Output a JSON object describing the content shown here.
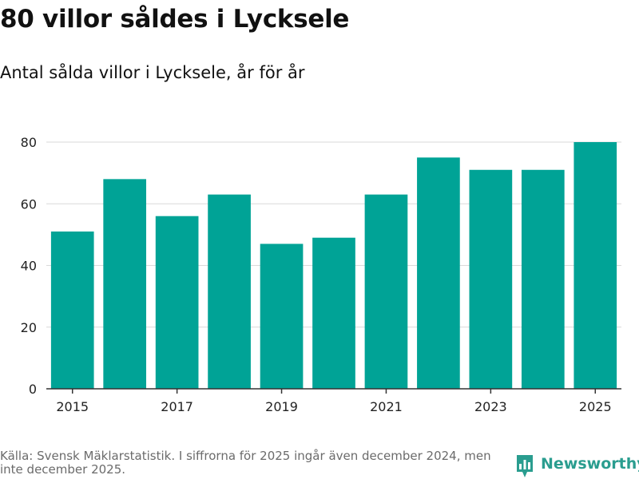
{
  "header": {
    "title": "80 villor såldes i Lycksele",
    "subtitle": "Antal sålda villor i Lycksele, år för år"
  },
  "footer": {
    "source": "Källa: Svensk Mäklarstatistik. I siffrorna för 2025 ingår även december 2024, men inte december 2025."
  },
  "brand": {
    "name": "Newsworthy",
    "icon": "newsworthy-logo-icon"
  },
  "colors": {
    "bar": "#00a396",
    "grid": "#d9d9d9",
    "axis": "#333333",
    "brand": "#2a9d8f"
  },
  "chart_data": {
    "type": "bar",
    "title": "Antal sålda villor i Lycksele, år för år",
    "xlabel": "",
    "ylabel": "",
    "categories": [
      "2015",
      "2016",
      "2017",
      "2018",
      "2019",
      "2020",
      "2021",
      "2022",
      "2023",
      "2024",
      "2025"
    ],
    "values": [
      51,
      68,
      56,
      63,
      47,
      49,
      63,
      75,
      71,
      71,
      80
    ],
    "ylim": [
      0,
      80
    ],
    "yticks": [
      0,
      20,
      40,
      60,
      80
    ],
    "xtick_labels": [
      "2015",
      "2017",
      "2019",
      "2021",
      "2023",
      "2025"
    ],
    "grid": true,
    "legend": "none"
  }
}
